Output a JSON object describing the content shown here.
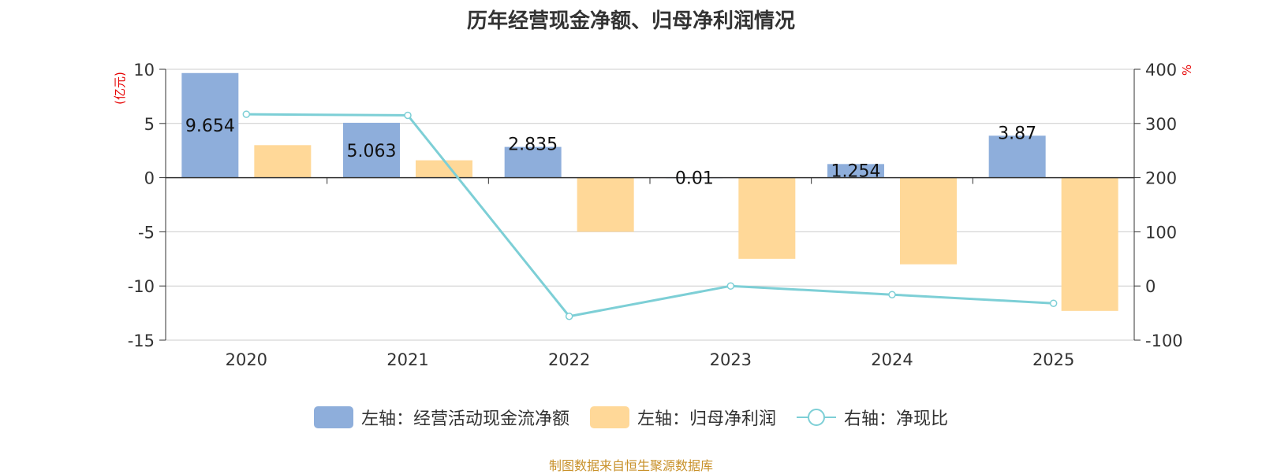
{
  "title": "历年经营现金净额、归母净利润情况",
  "source": "制图数据来自恒生聚源数据库",
  "units": {
    "left": "(亿元)",
    "right": "%"
  },
  "colors": {
    "cash": "#8eaedb",
    "profit": "#ffd898",
    "ratio": "#7dcfd6",
    "unit": "#e60000",
    "grid": "#cccccc"
  },
  "legend": [
    {
      "label": "左轴：经营活动现金流净额",
      "kind": "bar",
      "color": "#8eaedb"
    },
    {
      "label": "左轴：归母净利润",
      "kind": "bar",
      "color": "#ffd898"
    },
    {
      "label": "右轴：净现比",
      "kind": "line",
      "color": "#7dcfd6"
    }
  ],
  "chart_data": {
    "type": "bar",
    "categories": [
      "2020",
      "2021",
      "2022",
      "2023",
      "2024",
      "2025"
    ],
    "left_axis": {
      "ylim": [
        -15,
        10
      ],
      "ticks": [
        "10",
        "5",
        "0",
        "-5",
        "-10",
        "-15"
      ]
    },
    "right_axis": {
      "ylim": [
        -100,
        400
      ],
      "ticks": [
        "400",
        "300",
        "200",
        "100",
        "0",
        "-100"
      ]
    },
    "series": [
      {
        "name": "左轴：经营活动现金流净额",
        "axis": "left",
        "type": "bar",
        "values": [
          9.654,
          5.063,
          2.835,
          0.01,
          1.254,
          3.87
        ],
        "labels": [
          "9.654",
          "5.063",
          "2.835",
          "0.01",
          "1.254",
          "3.87"
        ]
      },
      {
        "name": "左轴：归母净利润",
        "axis": "left",
        "type": "bar",
        "values": [
          3.0,
          1.6,
          -5.0,
          -7.5,
          -8.0,
          -12.3
        ]
      },
      {
        "name": "右轴：净现比",
        "axis": "right",
        "type": "line",
        "values": [
          317,
          315,
          -56,
          0,
          -16,
          -32
        ]
      }
    ],
    "grid": true,
    "legend_position": "bottom"
  }
}
